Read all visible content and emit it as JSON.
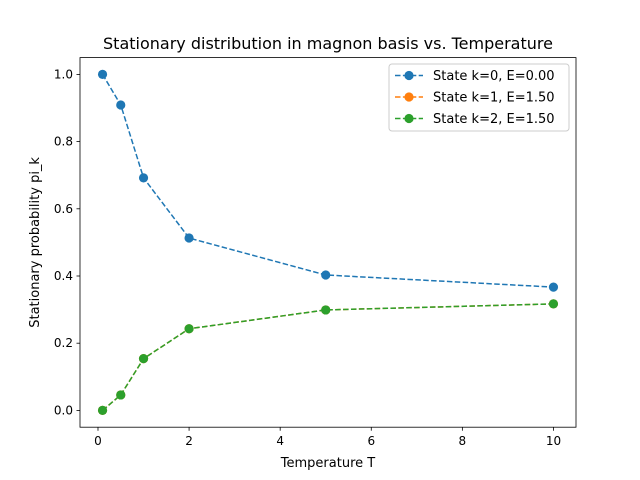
{
  "chart_data": {
    "type": "line",
    "title": "Stationary distribution in magnon basis vs. Temperature",
    "xlabel": "Temperature T",
    "ylabel": "Stationary probability pi_k",
    "x": [
      0.1,
      0.5,
      1,
      2,
      5,
      10
    ],
    "xlim": [
      -0.395,
      10.495
    ],
    "ylim": [
      -0.05,
      1.05
    ],
    "xticks": [
      0,
      2,
      4,
      6,
      8,
      10
    ],
    "xtick_labels": [
      "0",
      "2",
      "4",
      "6",
      "8",
      "10"
    ],
    "yticks": [
      0.0,
      0.2,
      0.4,
      0.6,
      0.8,
      1.0
    ],
    "ytick_labels": [
      "0.0",
      "0.2",
      "0.4",
      "0.6",
      "0.8",
      "1.0"
    ],
    "grid": false,
    "legend_position": "top-right",
    "line_style": "dashed",
    "marker": "circle",
    "series": [
      {
        "name": "State k=0, E=0.00",
        "color": "#1f77b4",
        "values": [
          1.0,
          0.909,
          0.692,
          0.513,
          0.403,
          0.367
        ]
      },
      {
        "name": "State k=1, E=1.50",
        "color": "#ff7f0e",
        "values": [
          0.0,
          0.046,
          0.154,
          0.243,
          0.299,
          0.317
        ]
      },
      {
        "name": "State k=2, E=1.50",
        "color": "#2ca02c",
        "values": [
          0.0,
          0.046,
          0.154,
          0.243,
          0.299,
          0.317
        ]
      }
    ]
  }
}
